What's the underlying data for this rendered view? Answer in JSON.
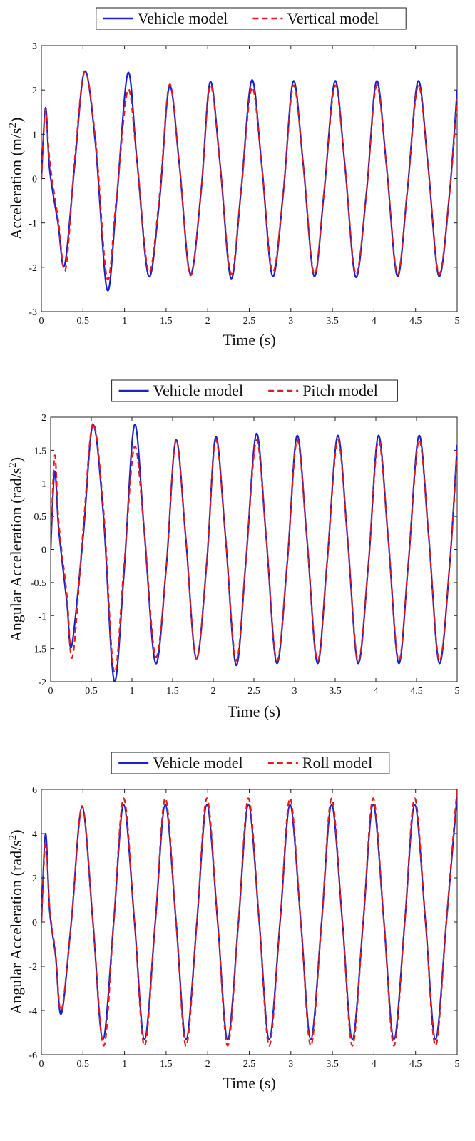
{
  "chart_data": [
    {
      "type": "line",
      "xlabel": "Time (s)",
      "ylabel": "Acceleration (m/s²)",
      "xlim": [
        0,
        5
      ],
      "ylim": [
        -3,
        3
      ],
      "xticks": [
        "0",
        "0.5",
        "1",
        "1.5",
        "2",
        "2.5",
        "3",
        "3.5",
        "4",
        "4.5",
        "5"
      ],
      "yticks": [
        "-3",
        "-2",
        "-1",
        "0",
        "1",
        "2",
        "3"
      ],
      "grid": false,
      "legend_placement": "top-center",
      "series": [
        {
          "name": "Vehicle model",
          "color": "#1c23c6",
          "dash": "solid",
          "x": [
            0,
            0.05,
            0.1,
            0.2,
            0.28,
            0.4,
            0.52,
            0.65,
            0.79,
            0.9,
            1.04,
            1.15,
            1.29,
            1.42,
            1.54,
            1.66,
            1.79,
            1.92,
            2.03,
            2.15,
            2.28,
            2.4,
            2.53,
            2.65,
            2.78,
            2.91,
            3.03,
            3.15,
            3.28,
            3.4,
            3.53,
            3.65,
            3.78,
            3.91,
            4.03,
            4.15,
            4.28,
            4.4,
            4.53,
            4.65,
            4.78,
            4.91,
            5.0
          ],
          "y": [
            0,
            1.6,
            0.2,
            -1.0,
            -1.95,
            0.3,
            2.42,
            0.8,
            -2.5,
            -0.6,
            2.38,
            0.4,
            -2.2,
            -0.5,
            2.08,
            0.3,
            -2.15,
            -0.3,
            2.18,
            0.3,
            -2.25,
            -0.3,
            2.22,
            0.3,
            -2.2,
            -0.3,
            2.2,
            0.3,
            -2.2,
            -0.3,
            2.2,
            0.3,
            -2.22,
            -0.3,
            2.2,
            0.3,
            -2.2,
            -0.3,
            2.2,
            0.3,
            -2.2,
            -0.3,
            2.0
          ]
        },
        {
          "name": "Vertical model",
          "color": "#e01c1c",
          "dash": "dashed",
          "x": [
            0,
            0.05,
            0.1,
            0.2,
            0.29,
            0.4,
            0.52,
            0.65,
            0.79,
            0.9,
            1.04,
            1.15,
            1.29,
            1.42,
            1.54,
            1.66,
            1.79,
            1.92,
            2.03,
            2.15,
            2.28,
            2.4,
            2.53,
            2.65,
            2.78,
            2.91,
            3.03,
            3.15,
            3.28,
            3.4,
            3.53,
            3.65,
            3.78,
            3.91,
            4.03,
            4.15,
            4.28,
            4.4,
            4.53,
            4.65,
            4.78,
            4.91,
            5.0
          ],
          "y": [
            0,
            1.55,
            0.4,
            -0.9,
            -2.05,
            0.4,
            2.4,
            0.9,
            -2.25,
            -0.5,
            2.0,
            0.4,
            -2.1,
            -0.4,
            2.12,
            0.3,
            -2.18,
            -0.3,
            2.1,
            0.3,
            -2.15,
            -0.3,
            2.05,
            0.3,
            -2.1,
            -0.3,
            2.1,
            0.3,
            -2.15,
            -0.3,
            2.1,
            0.3,
            -2.15,
            -0.3,
            2.1,
            0.3,
            -2.15,
            -0.3,
            2.1,
            0.3,
            -2.15,
            -0.3,
            1.8
          ]
        }
      ]
    },
    {
      "type": "line",
      "xlabel": "Time (s)",
      "ylabel": "Angular Acceleration (rad/s²)",
      "xlim": [
        0,
        5
      ],
      "ylim": [
        -2,
        2
      ],
      "xticks": [
        "0",
        "0.5",
        "1",
        "1.5",
        "2",
        "2.5",
        "3",
        "3.5",
        "4",
        "4.5",
        "5"
      ],
      "yticks": [
        "-2",
        "-1.5",
        "-1",
        "-0.5",
        "0",
        "0.5",
        "1",
        "1.5",
        "2"
      ],
      "grid": false,
      "legend_placement": "top-center",
      "series": [
        {
          "name": "Vehicle model",
          "color": "#1c23c6",
          "dash": "solid",
          "x": [
            0,
            0.05,
            0.1,
            0.2,
            0.26,
            0.4,
            0.52,
            0.65,
            0.78,
            0.9,
            1.03,
            1.15,
            1.29,
            1.42,
            1.54,
            1.66,
            1.79,
            1.92,
            2.03,
            2.15,
            2.28,
            2.4,
            2.53,
            2.65,
            2.78,
            2.91,
            3.03,
            3.15,
            3.28,
            3.4,
            3.53,
            3.65,
            3.78,
            3.91,
            4.03,
            4.15,
            4.28,
            4.4,
            4.53,
            4.65,
            4.78,
            4.91,
            5.0
          ],
          "y": [
            0,
            1.18,
            0.3,
            -0.8,
            -1.45,
            0.2,
            1.88,
            0.5,
            -1.98,
            -0.4,
            1.88,
            0.3,
            -1.72,
            -0.3,
            1.65,
            0.2,
            -1.65,
            -0.2,
            1.7,
            0.2,
            -1.75,
            -0.2,
            1.75,
            0.2,
            -1.72,
            -0.2,
            1.72,
            0.2,
            -1.72,
            -0.2,
            1.72,
            0.2,
            -1.72,
            -0.2,
            1.72,
            0.2,
            -1.72,
            -0.2,
            1.72,
            0.2,
            -1.72,
            -0.2,
            1.58
          ]
        },
        {
          "name": "Pitch model",
          "color": "#e01c1c",
          "dash": "dashed",
          "x": [
            0,
            0.05,
            0.1,
            0.2,
            0.27,
            0.4,
            0.52,
            0.65,
            0.78,
            0.9,
            1.03,
            1.15,
            1.29,
            1.42,
            1.54,
            1.66,
            1.79,
            1.92,
            2.03,
            2.15,
            2.28,
            2.4,
            2.53,
            2.65,
            2.78,
            2.91,
            3.03,
            3.15,
            3.28,
            3.4,
            3.53,
            3.65,
            3.78,
            3.91,
            4.03,
            4.15,
            4.28,
            4.4,
            4.53,
            4.65,
            4.78,
            4.91,
            5.0
          ],
          "y": [
            0,
            1.42,
            0.4,
            -0.7,
            -1.62,
            0.3,
            1.9,
            0.6,
            -1.85,
            -0.3,
            1.55,
            0.3,
            -1.62,
            -0.3,
            1.65,
            0.2,
            -1.65,
            -0.2,
            1.65,
            0.2,
            -1.68,
            -0.2,
            1.65,
            0.2,
            -1.68,
            -0.2,
            1.65,
            0.2,
            -1.68,
            -0.2,
            1.65,
            0.2,
            -1.68,
            -0.2,
            1.65,
            0.2,
            -1.68,
            -0.2,
            1.65,
            0.2,
            -1.68,
            -0.2,
            1.5
          ]
        }
      ]
    },
    {
      "type": "line",
      "xlabel": "Time (s)",
      "ylabel": "Angular Acceleration (rad/s²)",
      "xlim": [
        0,
        5
      ],
      "ylim": [
        -6,
        6
      ],
      "xticks": [
        "0",
        "0.5",
        "1",
        "1.5",
        "2",
        "2.5",
        "3",
        "3.5",
        "4",
        "4.5",
        "5"
      ],
      "yticks": [
        "-6",
        "-4",
        "-2",
        "0",
        "2",
        "4",
        "6"
      ],
      "grid": false,
      "legend_placement": "top-center",
      "series": [
        {
          "name": "Vehicle model",
          "color": "#1c23c6",
          "dash": "solid",
          "x": [
            0,
            0.05,
            0.1,
            0.17,
            0.24,
            0.36,
            0.49,
            0.62,
            0.74,
            0.87,
            0.99,
            1.12,
            1.24,
            1.37,
            1.49,
            1.62,
            1.74,
            1.87,
            1.99,
            2.12,
            2.24,
            2.37,
            2.49,
            2.62,
            2.74,
            2.87,
            2.99,
            3.12,
            3.24,
            3.37,
            3.49,
            3.62,
            3.74,
            3.87,
            3.99,
            4.12,
            4.24,
            4.37,
            4.49,
            4.62,
            4.74,
            4.87,
            4.99,
            5.0
          ],
          "y": [
            0,
            4.0,
            0.5,
            -1.5,
            -4.15,
            0.0,
            5.2,
            0.0,
            -5.3,
            0.0,
            5.3,
            0.0,
            -5.3,
            0.0,
            5.3,
            0.0,
            -5.3,
            0.0,
            5.3,
            0.0,
            -5.3,
            0.0,
            5.3,
            0.0,
            -5.3,
            0.0,
            5.3,
            0.0,
            -5.3,
            0.0,
            5.3,
            0.0,
            -5.3,
            0.0,
            5.3,
            0.0,
            -5.3,
            0.0,
            5.3,
            0.0,
            -5.3,
            0.0,
            5.3,
            5.3
          ]
        },
        {
          "name": "Roll model",
          "color": "#e01c1c",
          "dash": "dashed",
          "x": [
            0,
            0.05,
            0.1,
            0.17,
            0.24,
            0.36,
            0.49,
            0.62,
            0.75,
            0.87,
            0.99,
            1.12,
            1.24,
            1.37,
            1.49,
            1.62,
            1.74,
            1.87,
            1.99,
            2.12,
            2.24,
            2.37,
            2.49,
            2.62,
            2.74,
            2.87,
            2.99,
            3.12,
            3.24,
            3.37,
            3.49,
            3.62,
            3.74,
            3.87,
            3.99,
            4.12,
            4.24,
            4.37,
            4.49,
            4.62,
            4.74,
            4.87,
            4.99,
            5.0
          ],
          "y": [
            0,
            3.6,
            0.6,
            -1.4,
            -4.0,
            0.0,
            5.25,
            0.0,
            -5.6,
            0.0,
            5.6,
            0.0,
            -5.6,
            0.0,
            5.6,
            0.0,
            -5.6,
            0.0,
            5.6,
            0.0,
            -5.6,
            0.0,
            5.6,
            0.0,
            -5.6,
            0.0,
            5.6,
            0.0,
            -5.6,
            0.0,
            5.6,
            0.0,
            -5.6,
            0.0,
            5.6,
            0.0,
            -5.6,
            0.0,
            5.6,
            0.0,
            -5.6,
            0.0,
            5.6,
            5.6
          ]
        }
      ]
    }
  ]
}
